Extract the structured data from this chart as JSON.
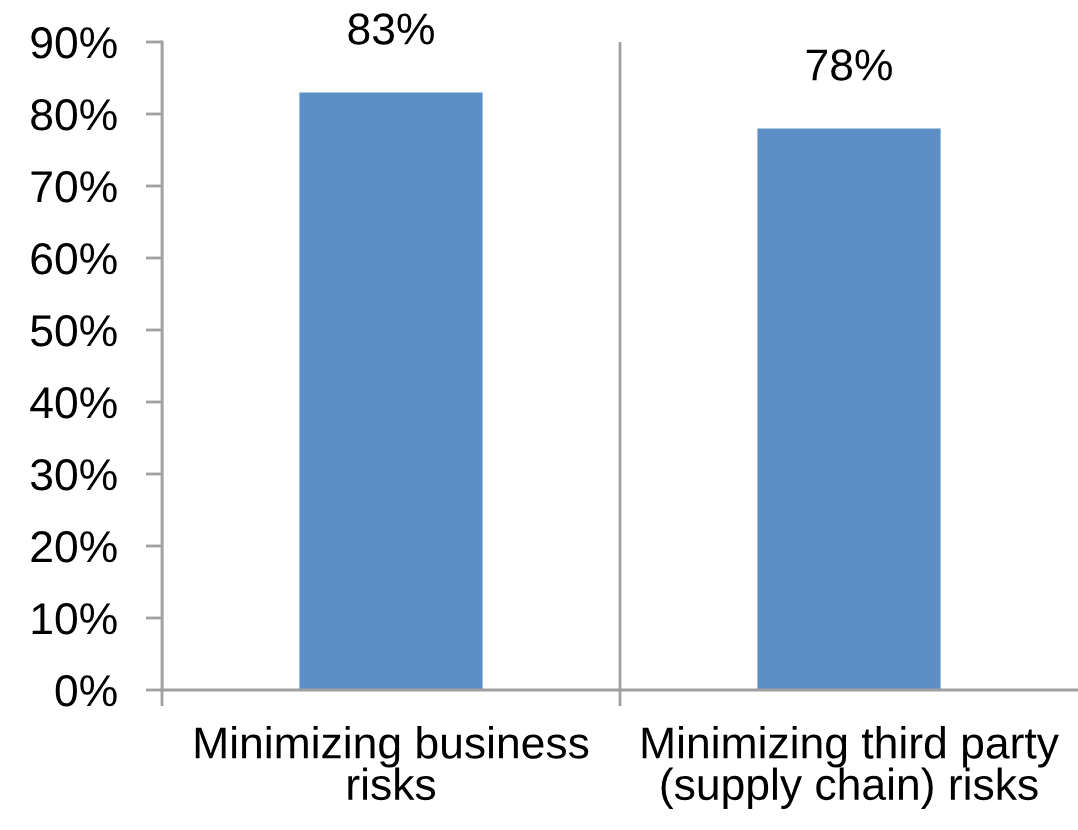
{
  "chart_data": {
    "type": "bar",
    "categories": [
      "Minimizing business risks",
      "Minimizing third party (supply chain) risks"
    ],
    "values": [
      83,
      78
    ],
    "color": "#5b8fc6",
    "value_labels": [
      "83%",
      "78%"
    ],
    "ylim": [
      0,
      90
    ],
    "yticks": [
      {
        "value": 0,
        "label": "0%"
      },
      {
        "value": 10,
        "label": "10%"
      },
      {
        "value": 20,
        "label": "20%"
      },
      {
        "value": 30,
        "label": "30%"
      },
      {
        "value": 40,
        "label": "40%"
      },
      {
        "value": 50,
        "label": "50%"
      },
      {
        "value": 60,
        "label": "60%"
      },
      {
        "value": 70,
        "label": "70%"
      },
      {
        "value": 80,
        "label": "80%"
      },
      {
        "value": 90,
        "label": "90%"
      }
    ],
    "grid": "x"
  }
}
